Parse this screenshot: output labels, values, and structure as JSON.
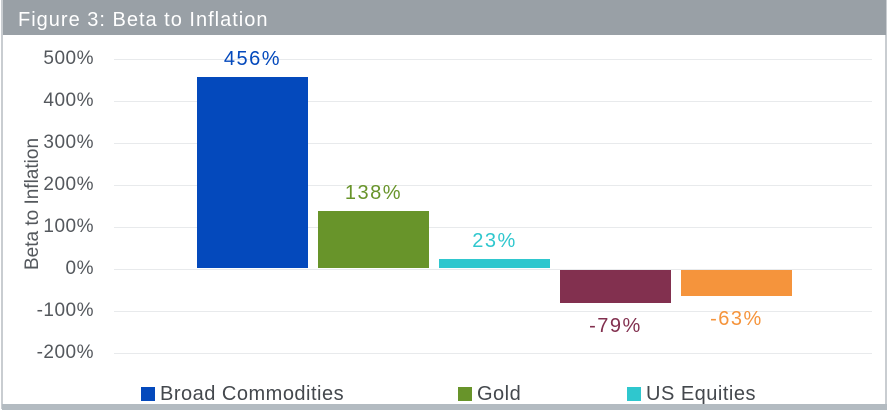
{
  "figure": {
    "title": "Figure 3: Beta to Inflation",
    "title_bar_color": "#99A0A6"
  },
  "chart_data": {
    "type": "bar",
    "title": "Figure 3: Beta to Inflation",
    "ylabel": "Beta to Inflation",
    "ylim": [
      -200,
      500
    ],
    "ytick_step": 100,
    "yticks": [
      "500%",
      "400%",
      "300%",
      "200%",
      "100%",
      "0%",
      "-100%",
      "-200%"
    ],
    "grid": true,
    "legend_position": "bottom",
    "series": [
      {
        "name": "Broad Commodities",
        "value": 456,
        "label": "456%",
        "color": "#0449BC"
      },
      {
        "name": "Gold",
        "value": 138,
        "label": "138%",
        "color": "#68942A"
      },
      {
        "name": "US Equities",
        "value": 23,
        "label": "23%",
        "color": "#2FC7CE"
      },
      {
        "name": "",
        "value": -79,
        "label": "-79%",
        "color": "#82304F"
      },
      {
        "name": "",
        "value": -63,
        "label": "-63%",
        "color": "#F5943C"
      }
    ],
    "legend": [
      {
        "label": "Broad Commodities",
        "color": "#0449BC"
      },
      {
        "label": "Gold",
        "color": "#68942A"
      },
      {
        "label": "US Equities",
        "color": "#2FC7CE"
      }
    ]
  }
}
